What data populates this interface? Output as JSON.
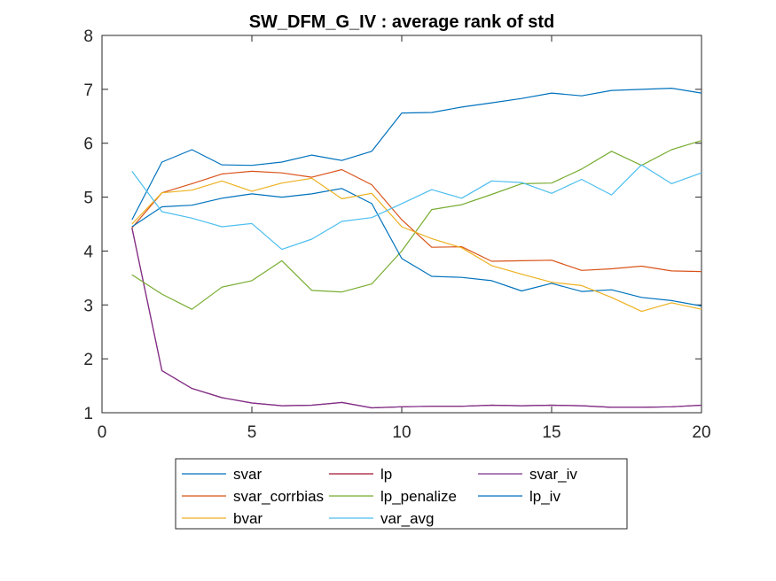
{
  "chart_data": {
    "type": "line",
    "title": "SW_DFM_G_IV : average rank of std",
    "xlabel": "",
    "ylabel": "",
    "xlim": [
      0,
      20
    ],
    "ylim": [
      1,
      8
    ],
    "x_ticks": [
      "0",
      "5",
      "10",
      "15",
      "20"
    ],
    "y_ticks": [
      "1",
      "2",
      "3",
      "4",
      "5",
      "6",
      "7",
      "8"
    ],
    "grid": false,
    "legend_position": "bottom",
    "legend_columns": 3,
    "x": [
      1,
      2,
      3,
      4,
      5,
      6,
      7,
      8,
      9,
      10,
      11,
      12,
      13,
      14,
      15,
      16,
      17,
      18,
      19,
      20
    ],
    "series": [
      {
        "name": "svar",
        "color": "#0072BD",
        "values": [
          4.58,
          5.65,
          5.88,
          5.6,
          5.59,
          5.65,
          5.78,
          5.68,
          5.85,
          6.56,
          6.57,
          6.67,
          6.75,
          6.83,
          6.93,
          6.88,
          6.98,
          7.0,
          7.02,
          6.93
        ]
      },
      {
        "name": "lp",
        "color": "#A2142F",
        "values": [
          4.43,
          1.78,
          1.45,
          1.28,
          1.18,
          1.13,
          1.14,
          1.19,
          1.09,
          1.11,
          1.12,
          1.12,
          1.14,
          1.13,
          1.14,
          1.13,
          1.1,
          1.1,
          1.11,
          1.14
        ]
      },
      {
        "name": "svar_iv",
        "color": "#7E2F8E",
        "values": [
          4.43,
          1.78,
          1.45,
          1.28,
          1.18,
          1.13,
          1.14,
          1.19,
          1.09,
          1.11,
          1.12,
          1.12,
          1.14,
          1.13,
          1.14,
          1.13,
          1.1,
          1.1,
          1.11,
          1.14
        ]
      },
      {
        "name": "svar_corrbias",
        "color": "#D95319",
        "values": [
          4.43,
          5.08,
          5.25,
          5.43,
          5.48,
          5.45,
          5.37,
          5.51,
          5.23,
          4.58,
          4.07,
          4.08,
          3.81,
          3.82,
          3.83,
          3.64,
          3.67,
          3.72,
          3.63,
          3.62
        ]
      },
      {
        "name": "lp_penalize",
        "color": "#77AC30",
        "values": [
          3.56,
          3.2,
          2.92,
          3.33,
          3.45,
          3.82,
          3.27,
          3.24,
          3.39,
          4.0,
          4.77,
          4.86,
          5.05,
          5.25,
          5.26,
          5.52,
          5.85,
          5.59,
          5.88,
          6.05
        ]
      },
      {
        "name": "lp_iv",
        "color": "#0072BD",
        "values": [
          4.45,
          4.82,
          4.85,
          4.98,
          5.06,
          5.0,
          5.06,
          5.16,
          4.88,
          3.86,
          3.53,
          3.51,
          3.45,
          3.26,
          3.4,
          3.25,
          3.28,
          3.14,
          3.08,
          2.98
        ]
      },
      {
        "name": "bvar",
        "color": "#EDB120",
        "values": [
          4.5,
          5.08,
          5.13,
          5.3,
          5.11,
          5.26,
          5.35,
          4.97,
          5.07,
          4.45,
          4.23,
          4.06,
          3.73,
          3.57,
          3.42,
          3.36,
          3.14,
          2.88,
          3.04,
          2.92
        ]
      },
      {
        "name": "var_avg",
        "color": "#4DBEEE",
        "values": [
          5.48,
          4.73,
          4.61,
          4.45,
          4.51,
          4.03,
          4.22,
          4.55,
          4.62,
          4.88,
          5.14,
          4.98,
          5.3,
          5.27,
          5.07,
          5.33,
          5.04,
          5.6,
          5.25,
          5.45
        ]
      }
    ]
  }
}
